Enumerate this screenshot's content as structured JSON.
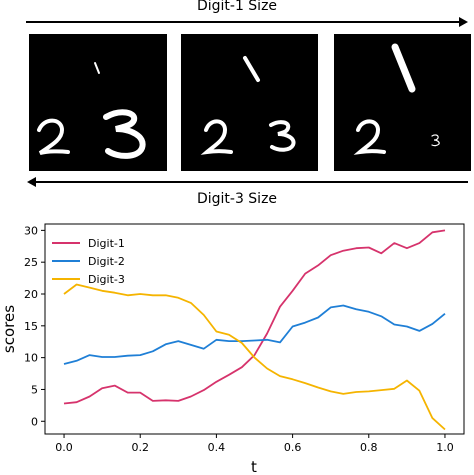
{
  "figure": {
    "top_arrow_label": "Digit-1 Size",
    "bottom_arrow_label": "Digit-3 Size"
  },
  "chart_data": {
    "type": "line",
    "xlabel": "t",
    "ylabel": "scores",
    "xlim": [
      -0.05,
      1.05
    ],
    "ylim": [
      -2,
      31
    ],
    "xticks": [
      0.0,
      0.2,
      0.4,
      0.6,
      0.8,
      1.0
    ],
    "xtick_labels": [
      "0.0",
      "0.2",
      "0.4",
      "0.6",
      "0.8",
      "1.0"
    ],
    "yticks": [
      0,
      5,
      10,
      15,
      20,
      25,
      30
    ],
    "ytick_labels": [
      "0",
      "5",
      "10",
      "15",
      "20",
      "25",
      "30"
    ],
    "grid": false,
    "legend_position": "top-left",
    "x": [
      0.0,
      0.033,
      0.067,
      0.1,
      0.133,
      0.167,
      0.2,
      0.233,
      0.267,
      0.3,
      0.333,
      0.367,
      0.4,
      0.433,
      0.467,
      0.5,
      0.533,
      0.567,
      0.6,
      0.633,
      0.667,
      0.7,
      0.733,
      0.767,
      0.8,
      0.833,
      0.867,
      0.9,
      0.933,
      0.967,
      1.0
    ],
    "series": [
      {
        "name": "Digit-1",
        "color": "#d6336c",
        "values": [
          2.8,
          3.0,
          3.9,
          5.2,
          5.6,
          4.5,
          4.5,
          3.2,
          3.3,
          3.2,
          3.9,
          4.9,
          6.2,
          7.3,
          8.5,
          10.4,
          13.8,
          18.0,
          20.5,
          23.2,
          24.5,
          26.1,
          26.8,
          27.2,
          27.3,
          26.4,
          28.0,
          27.2,
          28.0,
          29.7,
          30.0
        ]
      },
      {
        "name": "Digit-2",
        "color": "#1f7fd6",
        "values": [
          9.0,
          9.5,
          10.4,
          10.1,
          10.1,
          10.3,
          10.4,
          11.0,
          12.1,
          12.6,
          12.0,
          11.4,
          12.8,
          12.6,
          12.6,
          12.7,
          12.8,
          12.4,
          14.9,
          15.5,
          16.3,
          17.9,
          18.2,
          17.6,
          17.2,
          16.5,
          15.2,
          14.9,
          14.2,
          15.3,
          16.9
        ]
      },
      {
        "name": "Digit-3",
        "color": "#f5b400",
        "values": [
          20.0,
          21.5,
          21.0,
          20.5,
          20.2,
          19.8,
          20.0,
          19.8,
          19.8,
          19.4,
          18.6,
          16.7,
          14.1,
          13.6,
          12.3,
          10.0,
          8.3,
          7.1,
          6.6,
          6.0,
          5.3,
          4.7,
          4.3,
          4.6,
          4.7,
          4.9,
          5.1,
          6.4,
          4.8,
          0.5,
          -1.3
        ]
      }
    ]
  }
}
